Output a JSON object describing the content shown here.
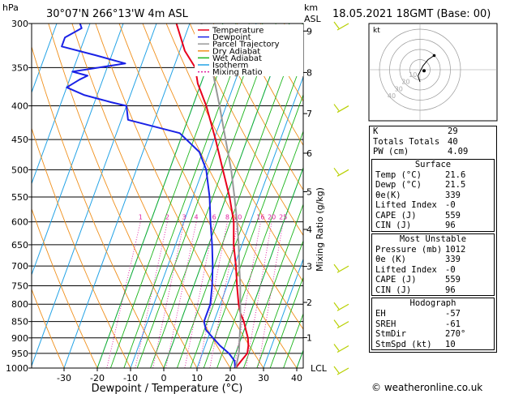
{
  "header": {
    "location": "30°07'N  266°13'W  4m  ASL",
    "datetime": "18.05.2021  18GMT  (Base: 00)",
    "hpa_label": "hPa",
    "km_label": "km",
    "asl_label": "ASL"
  },
  "chart_data": {
    "type": "line",
    "xlabel": "Dewpoint / Temperature (°C)",
    "ylabel": "Mixing Ratio (g/kg)",
    "x_ticks": [
      "-30",
      "-20",
      "-10",
      "0",
      "10",
      "20",
      "30",
      "40"
    ],
    "pressure_levels": [
      "300",
      "350",
      "400",
      "450",
      "500",
      "550",
      "600",
      "650",
      "700",
      "750",
      "800",
      "850",
      "900",
      "950",
      "1000"
    ],
    "km_ticks": [
      "9",
      "8",
      "7",
      "6",
      "5",
      "4",
      "3",
      "2",
      "1"
    ],
    "lcl_label": "LCL",
    "mixing_ratio_labels": [
      "1",
      "2",
      "3",
      "4",
      "6",
      "8",
      "10",
      "16",
      "20",
      "25"
    ],
    "legend": [
      {
        "name": "Temperature",
        "color": "#e8001c",
        "dash": false
      },
      {
        "name": "Dewpoint",
        "color": "#1a22e6",
        "dash": false
      },
      {
        "name": "Parcel Trajectory",
        "color": "#999999",
        "dash": false
      },
      {
        "name": "Dry Adiabat",
        "color": "#f0901c",
        "dash": false
      },
      {
        "name": "Wet Adiabat",
        "color": "#1bb51b",
        "dash": false
      },
      {
        "name": "Isotherm",
        "color": "#23a3e6",
        "dash": false
      },
      {
        "name": "Mixing Ratio",
        "color": "#e020a0",
        "dash": true
      }
    ],
    "series": [
      {
        "name": "Temperature",
        "color": "#e8001c",
        "points": [
          [
            1000,
            21.6
          ],
          [
            975,
            22.5
          ],
          [
            950,
            23.5
          ],
          [
            925,
            23.0
          ],
          [
            900,
            22.0
          ],
          [
            875,
            20.5
          ],
          [
            850,
            19.0
          ],
          [
            825,
            17.0
          ],
          [
            800,
            15.5
          ],
          [
            750,
            13.0
          ],
          [
            700,
            10.5
          ],
          [
            650,
            7.5
          ],
          [
            600,
            5.0
          ],
          [
            550,
            1.0
          ],
          [
            500,
            -4.0
          ],
          [
            450,
            -9.5
          ],
          [
            400,
            -16.0
          ],
          [
            370,
            -21.0
          ],
          [
            350,
            -23.5
          ],
          [
            330,
            -28.5
          ],
          [
            300,
            -34.0
          ]
        ]
      },
      {
        "name": "Dewpoint",
        "color": "#1a22e6",
        "points": [
          [
            1000,
            21.5
          ],
          [
            975,
            20.5
          ],
          [
            950,
            18.0
          ],
          [
            925,
            14.5
          ],
          [
            900,
            11.5
          ],
          [
            875,
            8.5
          ],
          [
            850,
            7.0
          ],
          [
            800,
            7.0
          ],
          [
            750,
            5.5
          ],
          [
            700,
            3.5
          ],
          [
            650,
            1.0
          ],
          [
            600,
            -2.0
          ],
          [
            550,
            -5.0
          ],
          [
            500,
            -9.0
          ],
          [
            470,
            -13.0
          ],
          [
            440,
            -21.0
          ],
          [
            420,
            -38.0
          ],
          [
            400,
            -40.0
          ],
          [
            395,
            -45.0
          ],
          [
            385,
            -54.0
          ],
          [
            375,
            -60.0
          ],
          [
            365,
            -57.0
          ],
          [
            360,
            -55.0
          ],
          [
            355,
            -60.0
          ],
          [
            345,
            -45.0
          ],
          [
            335,
            -55.0
          ],
          [
            325,
            -66.0
          ],
          [
            315,
            -66.0
          ],
          [
            305,
            -62.0
          ],
          [
            300,
            -63.0
          ]
        ]
      },
      {
        "name": "Parcel Trajectory",
        "color": "#999999",
        "points": [
          [
            1000,
            21.6
          ],
          [
            950,
            21.0
          ],
          [
            900,
            19.5
          ],
          [
            850,
            18.0
          ],
          [
            800,
            16.0
          ],
          [
            750,
            14.0
          ],
          [
            700,
            11.5
          ],
          [
            650,
            9.0
          ],
          [
            600,
            6.0
          ],
          [
            550,
            2.5
          ],
          [
            500,
            -1.5
          ],
          [
            450,
            -6.5
          ],
          [
            400,
            -12.0
          ],
          [
            350,
            -18.5
          ],
          [
            300,
            -26.5
          ]
        ]
      }
    ],
    "hodograph": {
      "label": "kt",
      "ring_labels": [
        "10",
        "20",
        "30",
        "40"
      ],
      "points_kt": [
        [
          0,
          -12
        ],
        [
          -2,
          -6
        ],
        [
          0,
          -2
        ],
        [
          3,
          4
        ],
        [
          8,
          10
        ],
        [
          14,
          14
        ]
      ],
      "storm_motion_kt": [
        4,
        -1
      ]
    },
    "wind_barbs_pressure": [
      300,
      400,
      500,
      700,
      800,
      850,
      925,
      1000
    ]
  },
  "indices": {
    "rows": [
      {
        "label": "K",
        "value": "29"
      },
      {
        "label": "Totals Totals",
        "value": "40"
      },
      {
        "label": "PW (cm)",
        "value": "4.09"
      }
    ]
  },
  "surface": {
    "title": "Surface",
    "rows": [
      {
        "label": "Temp (°C)",
        "value": "21.6"
      },
      {
        "label": "Dewp (°C)",
        "value": "21.5"
      },
      {
        "label": "θe(K)",
        "value": "339"
      },
      {
        "label": "Lifted Index",
        "value": "-0"
      },
      {
        "label": "CAPE (J)",
        "value": "559"
      },
      {
        "label": "CIN (J)",
        "value": "96"
      }
    ]
  },
  "most_unstable": {
    "title": "Most Unstable",
    "rows": [
      {
        "label": "Pressure (mb)",
        "value": "1012"
      },
      {
        "label": "θe (K)",
        "value": "339"
      },
      {
        "label": "Lifted Index",
        "value": "-0"
      },
      {
        "label": "CAPE (J)",
        "value": "559"
      },
      {
        "label": "CIN (J)",
        "value": "96"
      }
    ]
  },
  "hodograph_table": {
    "title": "Hodograph",
    "rows": [
      {
        "label": "EH",
        "value": "-57"
      },
      {
        "label": "SREH",
        "value": "-61"
      },
      {
        "label": "StmDir",
        "value": "270°"
      },
      {
        "label": "StmSpd (kt)",
        "value": "10"
      }
    ]
  },
  "footer": {
    "copyright": "© weatheronline.co.uk"
  }
}
